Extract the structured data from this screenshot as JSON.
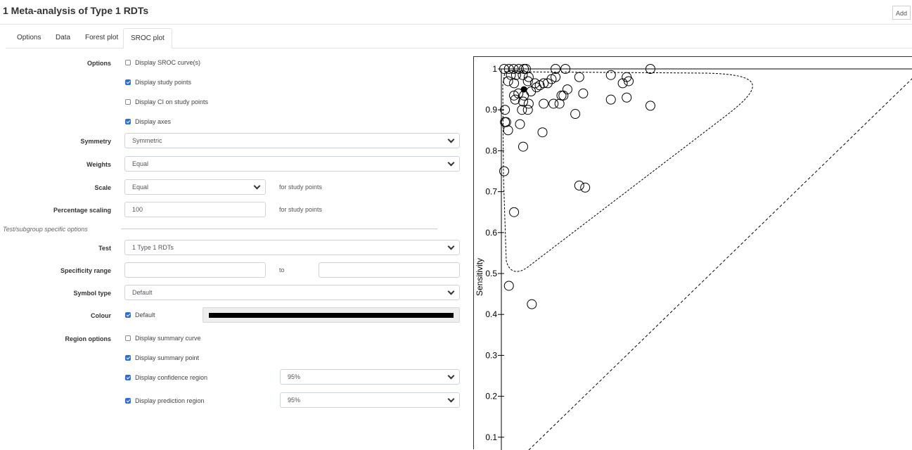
{
  "header": {
    "title": "1 Meta-analysis of Type 1 RDTs",
    "add_label": "Add"
  },
  "tabs": [
    {
      "label": "Options"
    },
    {
      "label": "Data"
    },
    {
      "label": "Forest plot"
    },
    {
      "label": "SROC plot",
      "active": true
    }
  ],
  "form": {
    "options_label": "Options",
    "options": [
      {
        "label": "Display SROC curve(s)",
        "checked": false
      },
      {
        "label": "Display study points",
        "checked": true
      },
      {
        "label": "Display CI on study points",
        "checked": false
      },
      {
        "label": "Display axes",
        "checked": true
      }
    ],
    "symmetry": {
      "label": "Symmetry",
      "value": "Symmetric"
    },
    "weights": {
      "label": "Weights",
      "value": "Equal"
    },
    "scale": {
      "label": "Scale",
      "value": "Equal",
      "hint": "for study points"
    },
    "percentage_scaling": {
      "label": "Percentage scaling",
      "value": "100",
      "hint": "for study points"
    },
    "section_label": "Test/subgroup specific options",
    "test": {
      "label": "Test",
      "value": "1 Type 1 RDTs"
    },
    "specificity_range": {
      "label": "Specificity range",
      "to_label": "to",
      "from": "",
      "to": ""
    },
    "symbol_type": {
      "label": "Symbol type",
      "value": "Default"
    },
    "colour": {
      "label": "Colour",
      "default_label": "Default",
      "checked": true,
      "value": "#000000"
    },
    "region_label": "Region options",
    "region": [
      {
        "label": "Display summary curve",
        "checked": false
      },
      {
        "label": "Display summary point",
        "checked": true
      },
      {
        "label": "Display confidence region",
        "checked": true,
        "value": "95%"
      },
      {
        "label": "Display prediction region",
        "checked": true,
        "value": "95%"
      }
    ]
  },
  "chart_data": {
    "type": "scatter",
    "ylabel": "Sensitivity",
    "xlabel": "",
    "ylim": [
      0.08,
      1.02
    ],
    "x_note": "1 - Specificity (axis not visible)",
    "yticks": [
      "0.1",
      "0.2",
      "0.3",
      "0.4",
      "0.5",
      "0.6",
      "0.7",
      "0.8",
      "0.9",
      "1"
    ],
    "summary_point": {
      "x": 0.05,
      "y": 0.95
    },
    "study_points": [
      [
        0.0,
        1.0
      ],
      [
        0.012,
        1.0
      ],
      [
        0.024,
        1.0
      ],
      [
        0.037,
        1.0
      ],
      [
        0.05,
        1.0
      ],
      [
        0.055,
        1.0
      ],
      [
        0.13,
        1.0
      ],
      [
        0.155,
        1.0
      ],
      [
        0.37,
        1.0
      ],
      [
        0.017,
        0.985
      ],
      [
        0.03,
        0.985
      ],
      [
        0.047,
        0.985
      ],
      [
        0.062,
        0.98
      ],
      [
        0.13,
        0.98
      ],
      [
        0.19,
        0.98
      ],
      [
        0.27,
        0.985
      ],
      [
        0.31,
        0.98
      ],
      [
        0.01,
        0.97
      ],
      [
        0.025,
        0.965
      ],
      [
        0.06,
        0.97
      ],
      [
        0.078,
        0.965
      ],
      [
        0.09,
        0.96
      ],
      [
        0.1,
        0.965
      ],
      [
        0.11,
        0.965
      ],
      [
        0.12,
        0.975
      ],
      [
        0.3,
        0.965
      ],
      [
        0.315,
        0.97
      ],
      [
        0.025,
        0.935
      ],
      [
        0.036,
        0.94
      ],
      [
        0.05,
        0.935
      ],
      [
        0.068,
        0.945
      ],
      [
        0.082,
        0.955
      ],
      [
        0.16,
        0.95
      ],
      [
        0.2,
        0.94
      ],
      [
        0.15,
        0.935
      ],
      [
        0.145,
        0.935
      ],
      [
        0.27,
        0.925
      ],
      [
        0.31,
        0.93
      ],
      [
        0.028,
        0.925
      ],
      [
        0.048,
        0.92
      ],
      [
        0.062,
        0.915
      ],
      [
        0.1,
        0.915
      ],
      [
        0.125,
        0.915
      ],
      [
        0.14,
        0.915
      ],
      [
        0.37,
        0.91
      ],
      [
        0.002,
        0.9
      ],
      [
        0.045,
        0.9
      ],
      [
        0.06,
        0.9
      ],
      [
        0.18,
        0.89
      ],
      [
        0.002,
        0.87
      ],
      [
        0.005,
        0.87
      ],
      [
        0.04,
        0.865
      ],
      [
        0.01,
        0.85
      ],
      [
        0.097,
        0.845
      ],
      [
        0.048,
        0.81
      ],
      [
        0.0,
        0.75
      ],
      [
        0.19,
        0.715
      ],
      [
        0.205,
        0.71
      ],
      [
        0.025,
        0.65
      ],
      [
        0.012,
        0.47
      ],
      [
        0.07,
        0.425
      ]
    ]
  }
}
